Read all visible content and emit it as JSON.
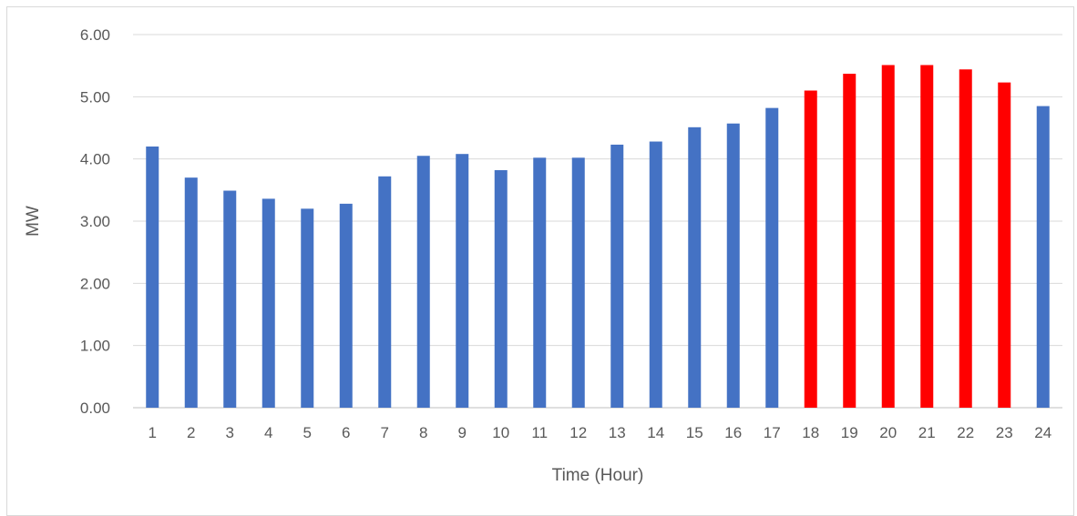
{
  "chart_data": {
    "type": "bar",
    "title": "",
    "xlabel": "Time (Hour)",
    "ylabel": "MW",
    "ylim": [
      0,
      6
    ],
    "y_ticks": [
      "0.00",
      "1.00",
      "2.00",
      "3.00",
      "4.00",
      "5.00",
      "6.00"
    ],
    "grid": "horizontal",
    "legend": "none",
    "categories": [
      "1",
      "2",
      "3",
      "4",
      "5",
      "6",
      "7",
      "8",
      "9",
      "10",
      "11",
      "12",
      "13",
      "14",
      "15",
      "16",
      "17",
      "18",
      "19",
      "20",
      "21",
      "22",
      "23",
      "24"
    ],
    "values": [
      4.2,
      3.7,
      3.49,
      3.36,
      3.2,
      3.28,
      3.72,
      4.05,
      4.08,
      3.82,
      4.02,
      4.02,
      4.23,
      4.28,
      4.51,
      4.57,
      4.82,
      5.1,
      5.37,
      5.51,
      5.51,
      5.44,
      5.23,
      4.85
    ],
    "colors": {
      "normal": "#4472C4",
      "highlight": "#FF0000",
      "grid": "#d9d9d9",
      "axis": "#bfbfbf",
      "text": "#595959"
    },
    "highlight_categories": [
      "18",
      "19",
      "20",
      "21",
      "22",
      "23"
    ]
  }
}
